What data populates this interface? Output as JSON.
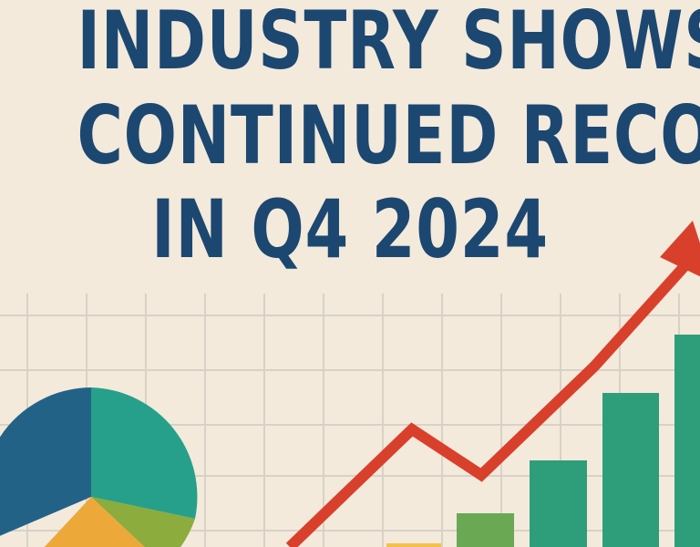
{
  "headline": {
    "line1": "INDUSTRY SHOWS",
    "line2": "CONTINUED RECOVERY",
    "line3": "IN Q4 2024"
  },
  "colors": {
    "background": "#f3eadc",
    "text": "#1c4770",
    "grid": "#d8d2c6",
    "arrow": "#d8402c",
    "bars": [
      "#f2c14a",
      "#6aa854",
      "#2e9e7a",
      "#2e9e7a",
      "#2e9e7a"
    ],
    "pie": [
      "#236287",
      "#26a08a",
      "#8cac3d",
      "#eda83a"
    ]
  },
  "icons": [
    "pie-chart-icon",
    "bar-chart-icon",
    "trend-arrow-icon"
  ]
}
